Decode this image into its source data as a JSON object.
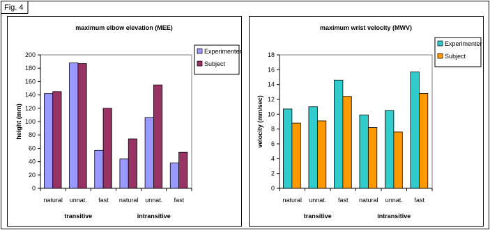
{
  "figure": {
    "label": "Fig. 4"
  },
  "chart_data": [
    {
      "type": "bar",
      "title": "maximum elbow elevation (MEE)",
      "xlabel": "",
      "ylabel": "height (mm)",
      "ylim": [
        0,
        200
      ],
      "yticks": [
        0,
        20,
        40,
        60,
        80,
        100,
        120,
        140,
        160,
        180,
        200
      ],
      "categories": [
        "natural",
        "unnat.",
        "fast",
        "natural",
        "unnat.",
        "fast"
      ],
      "groups": [
        {
          "label": "transitive",
          "categories": [
            "natural",
            "unnat.",
            "fast"
          ]
        },
        {
          "label": "intransitive",
          "categories": [
            "natural",
            "unnat.",
            "fast"
          ]
        }
      ],
      "series": [
        {
          "name": "Experimenter",
          "color": "#9999ff",
          "values": [
            142,
            188,
            57,
            44,
            106,
            38
          ]
        },
        {
          "name": "Subject",
          "color": "#993366",
          "values": [
            145,
            187,
            120,
            74,
            155,
            54
          ]
        }
      ],
      "grid": false,
      "legend": "right"
    },
    {
      "type": "bar",
      "title": "maximum wrist velocity (MWV)",
      "xlabel": "",
      "ylabel": "velocity (mm/sec)",
      "ylim": [
        0,
        18
      ],
      "yticks": [
        0,
        2,
        4,
        6,
        8,
        10,
        12,
        14,
        16,
        18
      ],
      "categories": [
        "natural",
        "unnat.",
        "fast",
        "natural",
        "unnat.",
        "fast"
      ],
      "groups": [
        {
          "label": "transitive",
          "categories": [
            "natural",
            "unnat.",
            "fast"
          ]
        },
        {
          "label": "intransitive",
          "categories": [
            "natural",
            "unnat.",
            "fast"
          ]
        }
      ],
      "series": [
        {
          "name": "Experimenter",
          "color": "#33cccc",
          "values": [
            10.7,
            11.0,
            14.6,
            9.9,
            10.5,
            15.7
          ]
        },
        {
          "name": "Subject",
          "color": "#ff9900",
          "values": [
            8.8,
            9.1,
            12.4,
            8.2,
            7.6,
            12.8
          ]
        }
      ],
      "grid": false,
      "legend": "right"
    }
  ]
}
